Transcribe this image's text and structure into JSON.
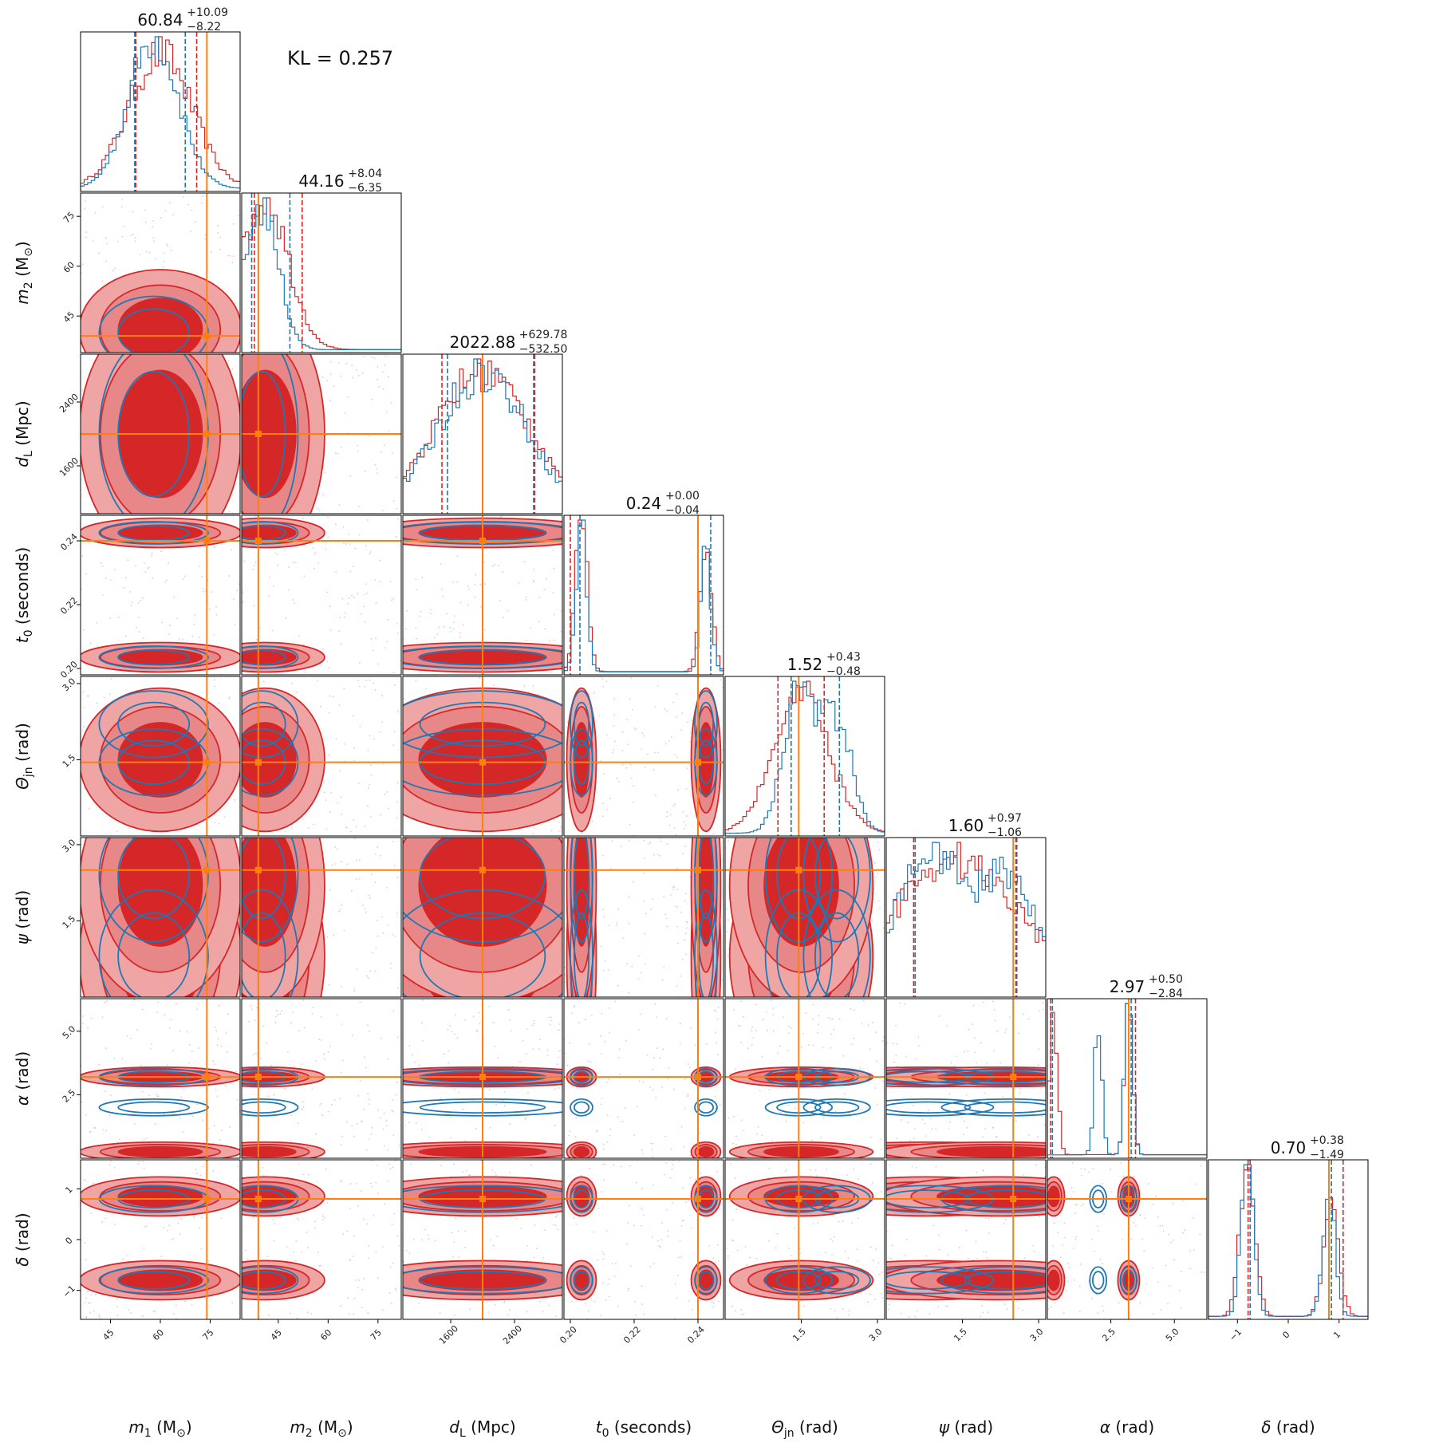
{
  "chart_data": {
    "type": "corner",
    "kl_text": "KL = 0.257",
    "colors": {
      "samples_a": "#d62728",
      "samples_b": "#1f77b4",
      "truth": "#ff7f0e"
    },
    "params": [
      {
        "key": "m1",
        "sym": "m",
        "sub": "1",
        "unit": "(M",
        "unit_sub": "⊙",
        "unit_end": ")",
        "range": [
          36,
          84
        ],
        "ticks": [
          45,
          60,
          75
        ],
        "tick_labels": [
          "45",
          "60",
          "75"
        ],
        "truth": 74,
        "median": 60.84,
        "low": 52.62,
        "high": 70.93,
        "title_value": "60.84",
        "title_plus": "+10.09",
        "title_minus": "−8.22",
        "modes_a": [
          60
        ],
        "spread_a": 9.5,
        "modes_b": [
          58
        ],
        "spread_b": 7.5,
        "ci_b": [
          52.3,
          67.5
        ]
      },
      {
        "key": "m2",
        "sym": "m",
        "sub": "2",
        "unit": "(M",
        "unit_sub": "⊙",
        "unit_end": ")",
        "range": [
          34,
          82
        ],
        "ticks": [
          45,
          60,
          75
        ],
        "tick_labels": [
          "45",
          "60",
          "75"
        ],
        "truth": 39,
        "median": 44.16,
        "low": 37.81,
        "high": 52.2,
        "title_value": "44.16",
        "title_plus": "+8.04",
        "title_minus": "−6.35",
        "modes_a": [
          41
        ],
        "spread_a": 7.0,
        "modes_b": [
          40
        ],
        "spread_b": 5.0,
        "ci_b": [
          37.0,
          48.5
        ]
      },
      {
        "key": "dL",
        "sym": "d",
        "sub": "L",
        "unit": "(Mpc)",
        "unit_sub": "",
        "unit_end": "",
        "range": [
          1000,
          3000
        ],
        "ticks": [
          1600,
          2400
        ],
        "tick_labels": [
          "1600",
          "2400"
        ],
        "truth": 2000,
        "median": 2022.88,
        "low": 1490.38,
        "high": 2652.66,
        "title_value": "2022.88",
        "title_plus": "+629.78",
        "title_minus": "−532.50",
        "modes_a": [
          2000
        ],
        "spread_a": 600,
        "modes_b": [
          2000
        ],
        "spread_b": 550,
        "ci_b": [
          1560,
          2640
        ]
      },
      {
        "key": "t0",
        "sym": "t",
        "sub": "0",
        "unit": "(seconds)",
        "unit_sub": "",
        "unit_end": "",
        "range": [
          0.198,
          0.248
        ],
        "ticks": [
          0.2,
          0.22,
          0.24
        ],
        "tick_labels": [
          "0.20",
          "0.22",
          "0.24"
        ],
        "truth": 0.24,
        "median": 0.24,
        "low": 0.2,
        "high": 0.24,
        "title_value": "0.24",
        "title_plus": "+0.00",
        "title_minus": "−0.04",
        "modes_a": [
          0.2035,
          0.2425
        ],
        "spread_a": 0.0018,
        "modes_b": [
          0.2035,
          0.2425
        ],
        "spread_b": 0.0016,
        "ci_b": [
          0.203,
          0.244
        ]
      },
      {
        "key": "thetajn",
        "sym": "Θ",
        "sub": "jn",
        "unit": "(rad)",
        "unit_sub": "",
        "unit_end": "",
        "range": [
          0,
          3.14
        ],
        "ticks": [
          1.5,
          3.0
        ],
        "tick_labels": [
          "1.5",
          "3.0"
        ],
        "truth": 1.45,
        "median": 1.52,
        "low": 1.04,
        "high": 1.95,
        "title_value": "1.52",
        "title_plus": "+0.43",
        "title_minus": "−0.48",
        "modes_a": [
          1.5
        ],
        "spread_a": 0.55,
        "modes_b": [
          1.45,
          2.2
        ],
        "spread_b": 0.3,
        "ci_b": [
          1.3,
          2.25
        ]
      },
      {
        "key": "psi",
        "sym": "ψ",
        "sub": "",
        "unit": "(rad)",
        "unit_sub": "",
        "unit_end": "",
        "range": [
          0,
          3.14
        ],
        "ticks": [
          1.5,
          3.0
        ],
        "tick_labels": [
          "1.5",
          "3.0"
        ],
        "truth": 2.5,
        "median": 1.6,
        "low": 0.54,
        "high": 2.57,
        "title_value": "1.60",
        "title_plus": "+0.97",
        "title_minus": "−1.06",
        "modes_a": [
          0.8,
          2.2
        ],
        "spread_a": 0.9,
        "modes_b": [
          0.8,
          2.4
        ],
        "spread_b": 0.6,
        "ci_b": [
          0.57,
          2.55
        ]
      },
      {
        "key": "alpha",
        "sym": "α",
        "sub": "",
        "unit": "(rad)",
        "unit_sub": "",
        "unit_end": "",
        "range": [
          0,
          6.28
        ],
        "ticks": [
          2.5,
          5.0
        ],
        "tick_labels": [
          "2.5",
          "5.0"
        ],
        "truth": 3.2,
        "median": 2.97,
        "low": 0.13,
        "high": 3.47,
        "title_value": "2.97",
        "title_plus": "+0.50",
        "title_minus": "−2.84",
        "modes_a": [
          3.2,
          0.25
        ],
        "spread_a": 0.15,
        "modes_b": [
          3.2,
          2.0
        ],
        "spread_b": 0.15,
        "ci_b": [
          0.2,
          3.3
        ]
      },
      {
        "key": "delta",
        "sym": "δ",
        "sub": "",
        "unit": "(rad)",
        "unit_sub": "",
        "unit_end": "",
        "range": [
          -1.57,
          1.57
        ],
        "ticks": [
          -1,
          0,
          1
        ],
        "tick_labels": [
          "−1",
          "0",
          "1"
        ],
        "truth": 0.8,
        "median": 0.7,
        "low": -0.79,
        "high": 1.08,
        "title_value": "0.70",
        "title_plus": "+0.38",
        "title_minus": "−1.49",
        "modes_a": [
          -0.8,
          0.85
        ],
        "spread_a": 0.15,
        "modes_b": [
          -0.8,
          0.8
        ],
        "spread_b": 0.12,
        "ci_b": [
          -0.75,
          0.85
        ]
      }
    ]
  }
}
